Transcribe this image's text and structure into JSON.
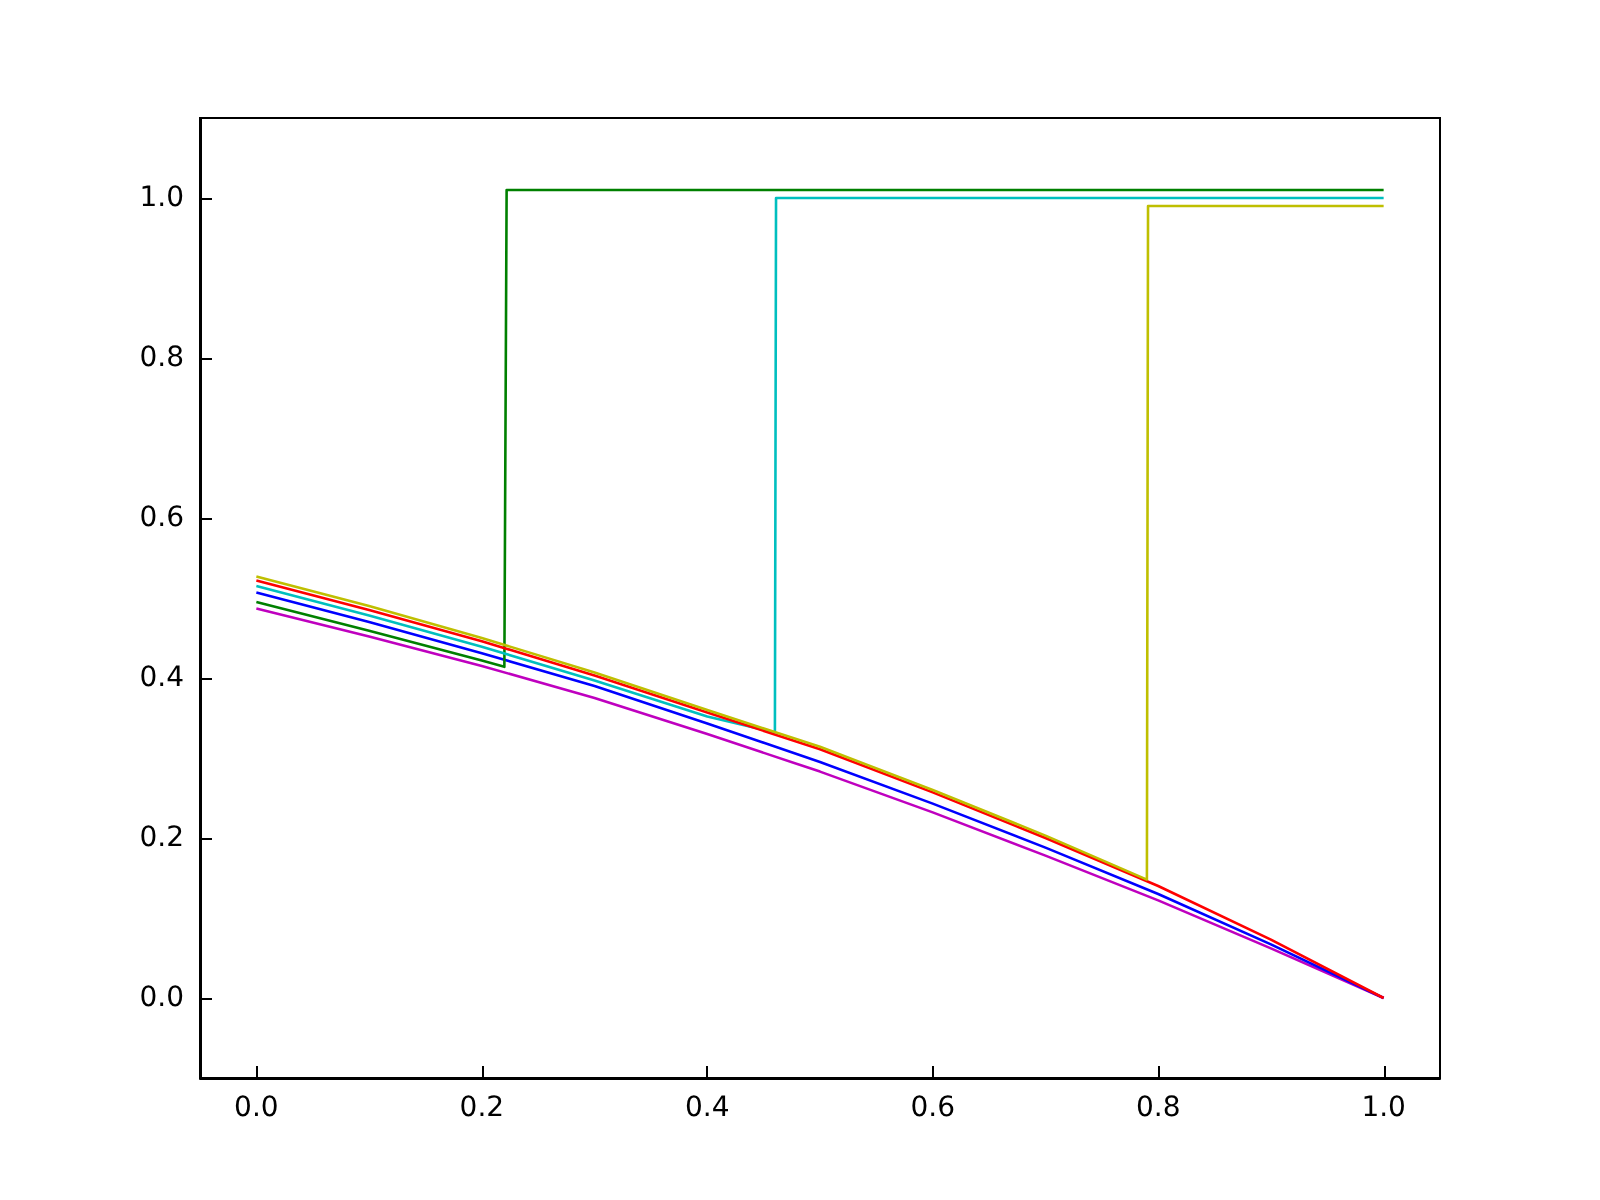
{
  "chart_data": {
    "type": "line",
    "xlim": [
      -0.05,
      1.05
    ],
    "ylim": [
      -0.1,
      1.1
    ],
    "xticks": [
      {
        "value": 0,
        "label": "0.0"
      },
      {
        "value": 0.2,
        "label": "0.2"
      },
      {
        "value": 0.4,
        "label": "0.4"
      },
      {
        "value": 0.6,
        "label": "0.6"
      },
      {
        "value": 0.8,
        "label": "0.8"
      },
      {
        "value": 1,
        "label": "1.0"
      }
    ],
    "yticks": [
      {
        "value": 0,
        "label": "0.0"
      },
      {
        "value": 0.2,
        "label": "0.2"
      },
      {
        "value": 0.4,
        "label": "0.4"
      },
      {
        "value": 0.6,
        "label": "0.6"
      },
      {
        "value": 0.8,
        "label": "0.8"
      },
      {
        "value": 1,
        "label": "1.0"
      }
    ],
    "grid": false,
    "marker": "none",
    "line_style": "solid",
    "series": [
      {
        "color": "#bf00bf",
        "x": [
          0,
          0.1,
          0.2,
          0.3,
          0.4,
          0.5,
          0.6,
          0.7,
          0.8,
          0.9,
          1
        ],
        "values": [
          0.487,
          0.452,
          0.415,
          0.375,
          0.33,
          0.283,
          0.232,
          0.178,
          0.122,
          0.062,
          0
        ]
      },
      {
        "color": "#0000ff",
        "x": [
          0,
          0.1,
          0.2,
          0.3,
          0.4,
          0.5,
          0.6,
          0.7,
          0.8,
          0.9,
          1
        ],
        "values": [
          0.507,
          0.47,
          0.431,
          0.39,
          0.343,
          0.295,
          0.243,
          0.188,
          0.13,
          0.067,
          0
        ]
      },
      {
        "color": "#008000",
        "x": [
          0,
          0.1,
          0.2,
          0.22,
          0.222,
          1
        ],
        "values": [
          0.495,
          0.459,
          0.422,
          0.414,
          1.01,
          1.01
        ]
      },
      {
        "color": "#00bfbf",
        "x": [
          0,
          0.1,
          0.2,
          0.3,
          0.4,
          0.46,
          0.461,
          1
        ],
        "values": [
          0.515,
          0.478,
          0.439,
          0.397,
          0.352,
          0.332,
          1.0,
          1.0
        ]
      },
      {
        "color": "#ff0000",
        "x": [
          0,
          0.1,
          0.2,
          0.3,
          0.4,
          0.5,
          0.6,
          0.7,
          0.8,
          0.9,
          1
        ],
        "values": [
          0.522,
          0.485,
          0.446,
          0.403,
          0.357,
          0.311,
          0.257,
          0.2,
          0.14,
          0.073,
          0
        ]
      },
      {
        "color": "#bfbf00",
        "x": [
          0,
          0.1,
          0.2,
          0.3,
          0.4,
          0.5,
          0.6,
          0.7,
          0.79,
          0.791,
          1
        ],
        "values": [
          0.527,
          0.49,
          0.45,
          0.407,
          0.36,
          0.314,
          0.26,
          0.203,
          0.148,
          0.99,
          0.99
        ]
      }
    ]
  }
}
